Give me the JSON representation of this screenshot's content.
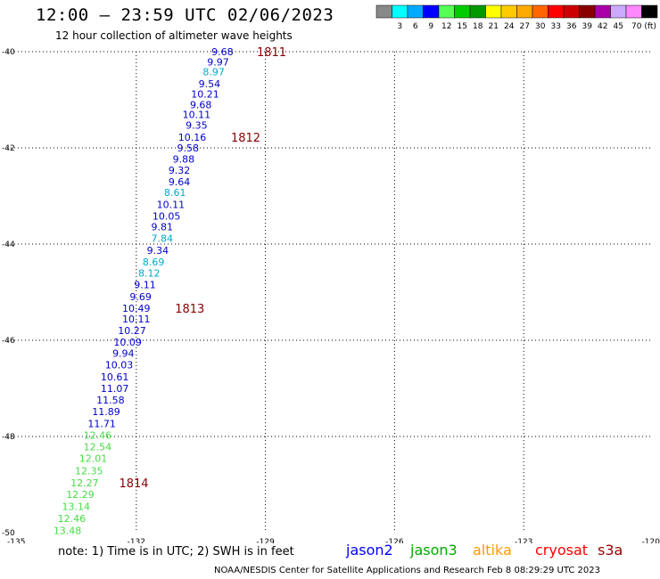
{
  "header": {
    "title": "12:00 – 23:59 UTC 02/06/2023",
    "subtitle": "12 hour collection of altimeter wave heights"
  },
  "legend": {
    "colors": [
      "#888888",
      "#00ffff",
      "#00aaff",
      "#0000ff",
      "#55ff55",
      "#00cc00",
      "#009900",
      "#ffff00",
      "#ffcc00",
      "#ffaa00",
      "#ff6600",
      "#ff0000",
      "#cc0000",
      "#880000",
      "#aa00aa",
      "#ccaaff",
      "#ff88ff",
      "#000000"
    ],
    "labels": [
      "3",
      "6",
      "9",
      "12",
      "15",
      "18",
      "21",
      "24",
      "27",
      "30",
      "33",
      "36",
      "39",
      "42",
      "45",
      "70 (ft)"
    ]
  },
  "map": {
    "lon_ticks": [
      "-135",
      "-132",
      "-129",
      "-126",
      "-123",
      "-120"
    ],
    "lat_ticks": [
      "-40",
      "-42",
      "-44",
      "-46",
      "-48",
      "-50"
    ]
  },
  "chart_data": {
    "type": "scatter",
    "xlabel": "",
    "ylabel": "",
    "xlim": [
      -135,
      -120
    ],
    "ylim": [
      -50,
      -40
    ],
    "points": [
      {
        "lat": -40.0,
        "lon": -130.0,
        "v": "9.68",
        "c": "#0000cc"
      },
      {
        "lat": -40.21,
        "lon": -130.1,
        "v": "9.97",
        "c": "#0000cc"
      },
      {
        "lat": -40.42,
        "lon": -130.2,
        "v": "8.97",
        "c": "#00aacc"
      },
      {
        "lat": -40.67,
        "lon": -130.3,
        "v": "9.54",
        "c": "#0000cc"
      },
      {
        "lat": -40.88,
        "lon": -130.4,
        "v": "10.21",
        "c": "#0000cc"
      },
      {
        "lat": -41.1,
        "lon": -130.5,
        "v": "9.68",
        "c": "#0000cc"
      },
      {
        "lat": -41.31,
        "lon": -130.6,
        "v": "10.11",
        "c": "#0000cc"
      },
      {
        "lat": -41.53,
        "lon": -130.6,
        "v": "9.35",
        "c": "#0000cc"
      },
      {
        "lat": -41.78,
        "lon": -130.7,
        "v": "10.16",
        "c": "#0000cc"
      },
      {
        "lat": -42.0,
        "lon": -130.8,
        "v": "9.58",
        "c": "#0000cc"
      },
      {
        "lat": -42.23,
        "lon": -130.9,
        "v": "9.88",
        "c": "#0000cc"
      },
      {
        "lat": -42.46,
        "lon": -131.0,
        "v": "9.32",
        "c": "#0000cc"
      },
      {
        "lat": -42.7,
        "lon": -131.0,
        "v": "9.64",
        "c": "#0000cc"
      },
      {
        "lat": -42.93,
        "lon": -131.1,
        "v": "8.61",
        "c": "#00aacc"
      },
      {
        "lat": -43.18,
        "lon": -131.2,
        "v": "10.11",
        "c": "#0000cc"
      },
      {
        "lat": -43.42,
        "lon": -131.3,
        "v": "10.05",
        "c": "#0000cc"
      },
      {
        "lat": -43.64,
        "lon": -131.4,
        "v": "9.81",
        "c": "#0000cc"
      },
      {
        "lat": -43.88,
        "lon": -131.4,
        "v": "7.84",
        "c": "#00aacc"
      },
      {
        "lat": -44.13,
        "lon": -131.5,
        "v": "9.34",
        "c": "#0000cc"
      },
      {
        "lat": -44.37,
        "lon": -131.6,
        "v": "8.69",
        "c": "#00aacc"
      },
      {
        "lat": -44.6,
        "lon": -131.7,
        "v": "8.12",
        "c": "#00aacc"
      },
      {
        "lat": -44.84,
        "lon": -131.8,
        "v": "9.11",
        "c": "#0000cc"
      },
      {
        "lat": -45.09,
        "lon": -131.9,
        "v": "9.69",
        "c": "#0000cc"
      },
      {
        "lat": -45.33,
        "lon": -132.0,
        "v": "10.49",
        "c": "#0000cc"
      },
      {
        "lat": -45.56,
        "lon": -132.0,
        "v": "10.11",
        "c": "#0000cc"
      },
      {
        "lat": -45.8,
        "lon": -132.1,
        "v": "10.27",
        "c": "#0000cc"
      },
      {
        "lat": -46.04,
        "lon": -132.2,
        "v": "10.09",
        "c": "#0000cc"
      },
      {
        "lat": -46.27,
        "lon": -132.3,
        "v": "9.94",
        "c": "#0000cc"
      },
      {
        "lat": -46.51,
        "lon": -132.4,
        "v": "10.03",
        "c": "#0000cc"
      },
      {
        "lat": -46.76,
        "lon": -132.5,
        "v": "10.61",
        "c": "#0000cc"
      },
      {
        "lat": -47.0,
        "lon": -132.5,
        "v": "11.07",
        "c": "#0000cc"
      },
      {
        "lat": -47.24,
        "lon": -132.6,
        "v": "11.58",
        "c": "#0000cc"
      },
      {
        "lat": -47.48,
        "lon": -132.7,
        "v": "11.89",
        "c": "#0000cc"
      },
      {
        "lat": -47.73,
        "lon": -132.8,
        "v": "11.71",
        "c": "#0000cc"
      },
      {
        "lat": -47.97,
        "lon": -132.9,
        "v": "12.46",
        "c": "#44dd44"
      },
      {
        "lat": -48.21,
        "lon": -132.9,
        "v": "12.54",
        "c": "#44dd44"
      },
      {
        "lat": -48.45,
        "lon": -133.0,
        "v": "12.01",
        "c": "#44dd44"
      },
      {
        "lat": -48.71,
        "lon": -133.1,
        "v": "12.35",
        "c": "#44dd44"
      },
      {
        "lat": -48.96,
        "lon": -133.2,
        "v": "12.27",
        "c": "#44dd44"
      },
      {
        "lat": -49.2,
        "lon": -133.3,
        "v": "12.29",
        "c": "#44dd44"
      },
      {
        "lat": -49.45,
        "lon": -133.4,
        "v": "13.14",
        "c": "#44dd44"
      },
      {
        "lat": -49.7,
        "lon": -133.5,
        "v": "12.46",
        "c": "#44dd44"
      },
      {
        "lat": -49.95,
        "lon": -133.6,
        "v": "13.48",
        "c": "#44dd44"
      }
    ],
    "times": [
      {
        "lat": -40.0,
        "lon": -129.2,
        "t": "1811"
      },
      {
        "lat": -41.78,
        "lon": -129.8,
        "t": "1812"
      },
      {
        "lat": -45.33,
        "lon": -131.1,
        "t": "1813"
      },
      {
        "lat": -48.96,
        "lon": -132.4,
        "t": "1814"
      }
    ]
  },
  "footer": {
    "note": "note:  1) Time is in UTC;  2) SWH is in feet",
    "satellites": [
      {
        "name": "jason2",
        "color": "#0000ff"
      },
      {
        "name": "jason3",
        "color": "#00aa00"
      },
      {
        "name": "altika",
        "color": "#ff9900"
      },
      {
        "name": "cryosat",
        "color": "#ff0000"
      },
      {
        "name": "s3a",
        "color": "#990000"
      }
    ],
    "credit": "NOAA/NESDIS Center for Satellite Applications and Research    Feb  8 08:29:29 UTC 2023"
  }
}
